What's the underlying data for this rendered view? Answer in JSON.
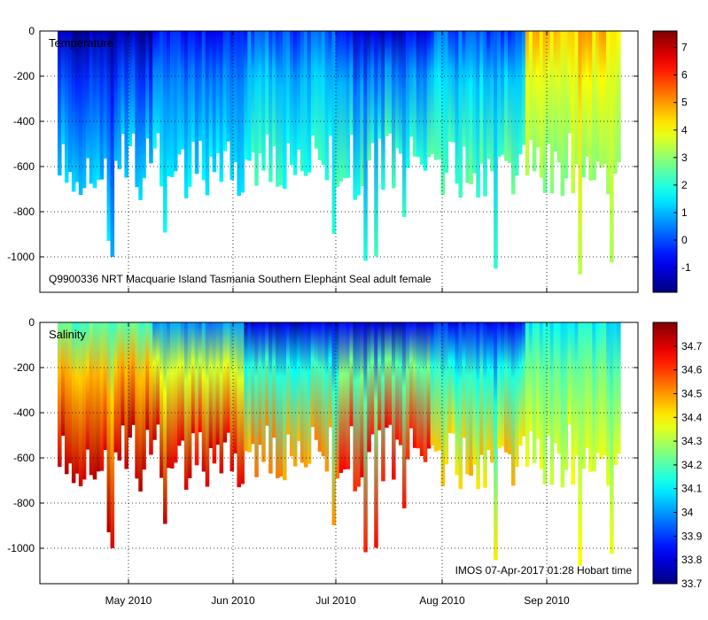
{
  "chart_data": [
    {
      "type": "heatmap",
      "title": "Temperature",
      "annotation": "Q9900336 NRT Macquarie Island Tasmania Southern Elephant Seal adult female",
      "xlabel": "",
      "ylabel": "",
      "ylim": [
        -1150,
        0
      ],
      "y_ticks": [
        0,
        -200,
        -400,
        -600,
        -800,
        -1000
      ],
      "y_tick_labels": [
        "0",
        "-200",
        "-400",
        "-600",
        "-800",
        "-1000"
      ],
      "colorbar": {
        "range": [
          -1.9,
          7.6
        ],
        "ticks": [
          -1,
          0,
          1,
          2,
          3,
          4,
          5,
          6,
          7
        ],
        "tick_labels": [
          "-1",
          "0",
          "1",
          "2",
          "3",
          "4",
          "5",
          "6",
          "7"
        ]
      },
      "time_axis": {
        "start": "2010-04-10",
        "end": "2010-09-28",
        "ticks": [
          "May 2010",
          "Jun 2010",
          "Jul 2010",
          "Aug 2010",
          "Sep 2010"
        ]
      },
      "profile_profile": {
        "surface_value_by_period": [
          {
            "period": "Apr 2010",
            "surface": -1.5,
            "deep": 1.2
          },
          {
            "period": "May 2010",
            "surface": -0.5,
            "deep": 1.5
          },
          {
            "period": "Jun 2010",
            "surface": 0.0,
            "deep": 2.0
          },
          {
            "period": "Jul 2010",
            "surface": -1.0,
            "deep": 2.2
          },
          {
            "period": "Aug 2010",
            "surface": 0.0,
            "deep": 2.5
          },
          {
            "period": "Sep 2010",
            "surface": 4.5,
            "deep": 3.0
          }
        ],
        "max_dive_depth_range": [
          -1100,
          -550
        ]
      }
    },
    {
      "type": "heatmap",
      "title": "Salinity",
      "annotation": "IMOS 07-Apr-2017 01:28 Hobart time",
      "xlabel": "",
      "ylabel": "",
      "ylim": [
        -1150,
        0
      ],
      "y_ticks": [
        0,
        -200,
        -400,
        -600,
        -800,
        -1000
      ],
      "y_tick_labels": [
        "0",
        "-200",
        "-400",
        "-600",
        "-800",
        "-1000"
      ],
      "colorbar": {
        "range": [
          33.7,
          34.8
        ],
        "ticks": [
          33.7,
          33.8,
          33.9,
          34.0,
          34.1,
          34.2,
          34.3,
          34.4,
          34.5,
          34.6,
          34.7
        ],
        "tick_labels": [
          "33.7",
          "33.8",
          "33.9",
          "34",
          "34.1",
          "34.2",
          "34.3",
          "34.4",
          "34.5",
          "34.6",
          "34.7"
        ]
      },
      "time_axis": {
        "start": "2010-04-10",
        "end": "2010-09-28",
        "ticks": [
          "May 2010",
          "Jun 2010",
          "Jul 2010",
          "Aug 2010",
          "Sep 2010"
        ]
      },
      "profile_profile": {
        "surface_value_by_period": [
          {
            "period": "Apr 2010",
            "surface": 34.2,
            "deep": 34.72
          },
          {
            "period": "May 2010",
            "surface": 34.0,
            "deep": 34.7
          },
          {
            "period": "Jun 2010",
            "surface": 33.8,
            "deep": 34.5
          },
          {
            "period": "Jul 2010",
            "surface": 33.8,
            "deep": 34.65
          },
          {
            "period": "Aug 2010",
            "surface": 33.85,
            "deep": 34.45
          },
          {
            "period": "Sep 2010",
            "surface": 34.1,
            "deep": 34.35
          }
        ],
        "max_dive_depth_range": [
          -1100,
          -550
        ]
      }
    }
  ]
}
